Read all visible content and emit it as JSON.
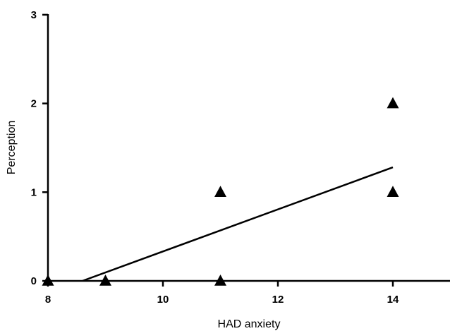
{
  "chart_data": {
    "type": "scatter",
    "title": "",
    "xlabel": "HAD anxiety",
    "ylabel": "Perception",
    "xlim": [
      8,
      15
    ],
    "ylim": [
      0,
      3
    ],
    "x_ticks": [
      8,
      10,
      12,
      14
    ],
    "y_ticks": [
      0,
      1,
      2,
      3
    ],
    "grid": false,
    "legend": "none",
    "marker": "triangle",
    "marker_color": "#000000",
    "series": [
      {
        "points": [
          {
            "x": 8,
            "y": 0
          },
          {
            "x": 9,
            "y": 0
          },
          {
            "x": 11,
            "y": 0
          },
          {
            "x": 11,
            "y": 1
          },
          {
            "x": 14,
            "y": 1
          },
          {
            "x": 14,
            "y": 2
          }
        ]
      }
    ],
    "regression_line": {
      "x": [
        8.6,
        14
      ],
      "y": [
        0,
        1.28
      ]
    }
  }
}
